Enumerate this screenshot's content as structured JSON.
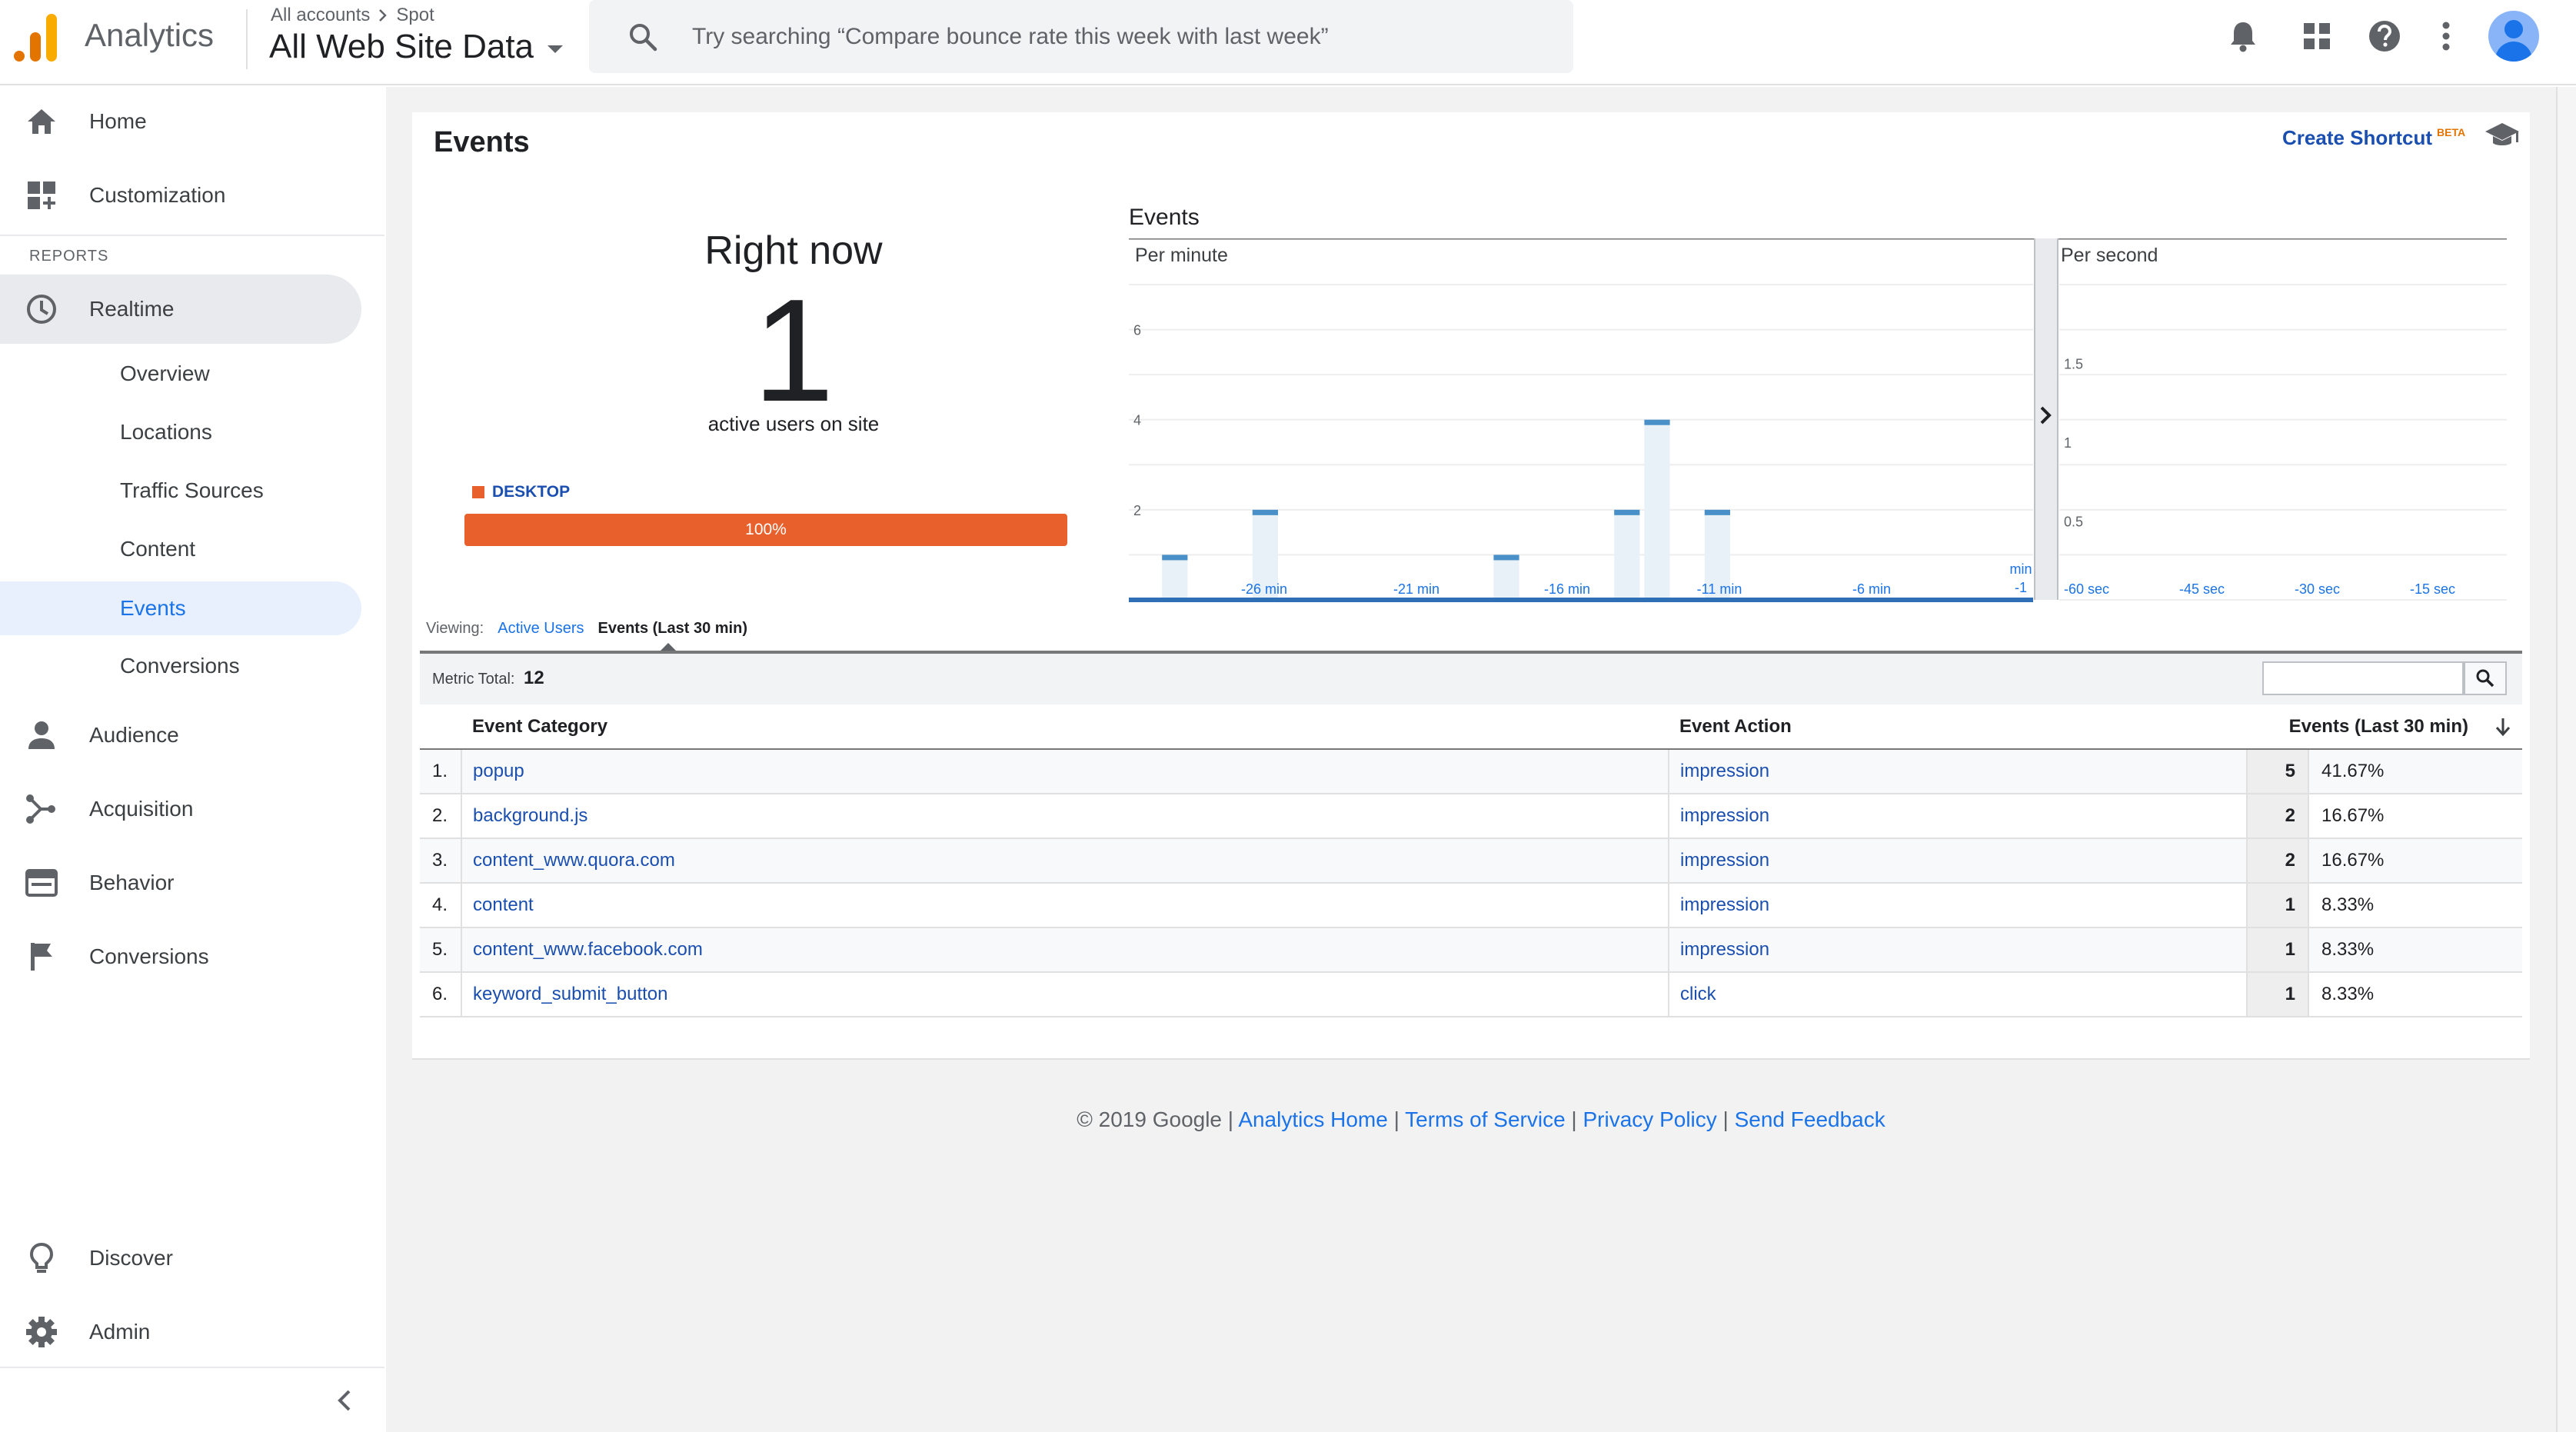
{
  "header": {
    "app_name": "Analytics",
    "breadcrumb": [
      "All accounts",
      "Spot"
    ],
    "property": "All Web Site Data",
    "search_placeholder": "Try searching “Compare bounce rate this week with last week”"
  },
  "sidebar": {
    "top_items": [
      {
        "label": "Home",
        "icon": "home-icon"
      },
      {
        "label": "Customization",
        "icon": "dashboard-icon"
      }
    ],
    "section_label": "REPORTS",
    "realtime": {
      "label": "Realtime",
      "icon": "clock-icon"
    },
    "realtime_sub": [
      "Overview",
      "Locations",
      "Traffic Sources",
      "Content",
      "Events",
      "Conversions"
    ],
    "active_sub": "Events",
    "bottom_items": [
      {
        "label": "Audience",
        "icon": "person-icon"
      },
      {
        "label": "Acquisition",
        "icon": "acquisition-icon"
      },
      {
        "label": "Behavior",
        "icon": "behavior-icon"
      },
      {
        "label": "Conversions",
        "icon": "flag-icon"
      }
    ],
    "footer_items": [
      {
        "label": "Discover",
        "icon": "lightbulb-icon"
      },
      {
        "label": "Admin",
        "icon": "gear-icon"
      }
    ]
  },
  "main": {
    "title": "Events",
    "create_shortcut": "Create Shortcut",
    "beta": "BETA",
    "right_now": {
      "label": "Right now",
      "value": "1",
      "sub_label": "active users on site",
      "device": "DESKTOP",
      "device_percent_label": "100%",
      "device_fraction": 1.0,
      "device_color": "#e8602c"
    },
    "chart_title": "Events",
    "viewing_label": "Viewing:",
    "view_active_users": "Active Users",
    "view_events": "Events (Last 30 min)",
    "metric_total_label": "Metric Total:",
    "metric_total": "12"
  },
  "chart_data": [
    {
      "type": "bar",
      "title": "Per minute",
      "x_tick_labels": [
        "-26 min",
        "-21 min",
        "-16 min",
        "-11 min",
        "-6 min",
        "min -1"
      ],
      "x": [
        -30,
        -29,
        -28,
        -27,
        -26,
        -25,
        -24,
        -23,
        -22,
        -21,
        -20,
        -19,
        -18,
        -17,
        -16,
        -15,
        -14,
        -13,
        -12,
        -11,
        -10,
        -9,
        -8,
        -7,
        -6,
        -5,
        -4,
        -3,
        -2,
        -1
      ],
      "values": [
        0,
        1,
        0,
        0,
        2,
        0,
        0,
        0,
        0,
        0,
        0,
        0,
        1,
        0,
        0,
        0,
        2,
        4,
        0,
        2,
        0,
        0,
        0,
        0,
        0,
        0,
        0,
        0,
        0,
        0
      ],
      "y_ticks": [
        2,
        4,
        6
      ],
      "ylim": [
        0,
        7
      ],
      "grid": true,
      "color": "#4a90c8"
    },
    {
      "type": "bar",
      "title": "Per second",
      "x_tick_labels": [
        "-60 sec",
        "-45 sec",
        "-30 sec",
        "-15 sec"
      ],
      "values": [],
      "y_ticks": [
        0.5,
        1,
        1.5
      ],
      "ylim": [
        0,
        2
      ],
      "grid": true,
      "color": "#4a90c8"
    }
  ],
  "table": {
    "columns": [
      "Event Category",
      "Event Action",
      "Events (Last 30 min)"
    ],
    "rows": [
      {
        "n": "1.",
        "category": "popup",
        "action": "impression",
        "count": "5",
        "pct": "41.67%"
      },
      {
        "n": "2.",
        "category": "background.js",
        "action": "impression",
        "count": "2",
        "pct": "16.67%"
      },
      {
        "n": "3.",
        "category": "content_www.quora.com",
        "action": "impression",
        "count": "2",
        "pct": "16.67%"
      },
      {
        "n": "4.",
        "category": "content",
        "action": "impression",
        "count": "1",
        "pct": "8.33%"
      },
      {
        "n": "5.",
        "category": "content_www.facebook.com",
        "action": "impression",
        "count": "1",
        "pct": "8.33%"
      },
      {
        "n": "6.",
        "category": "keyword_submit_button",
        "action": "click",
        "count": "1",
        "pct": "8.33%"
      }
    ]
  },
  "footer": {
    "copyright": "© 2019 Google",
    "sep": " | ",
    "links": [
      "Analytics Home",
      "Terms of Service",
      "Privacy Policy",
      "Send Feedback"
    ]
  }
}
